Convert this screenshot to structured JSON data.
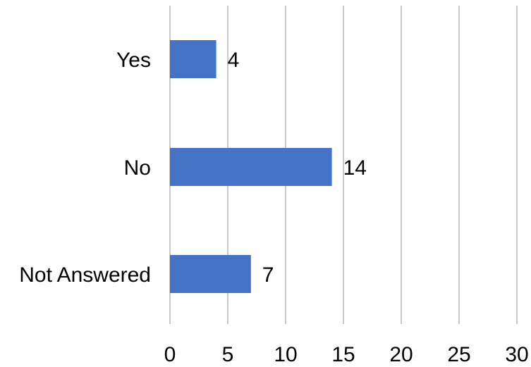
{
  "chart_data": {
    "type": "bar",
    "orientation": "horizontal",
    "title": "",
    "xlabel": "",
    "ylabel": "",
    "categories": [
      "Yes",
      "No",
      "Not Answered"
    ],
    "values": [
      4,
      14,
      7
    ],
    "xlim": [
      0,
      30
    ],
    "x_ticks": [
      0,
      5,
      10,
      15,
      20,
      25,
      30
    ],
    "x_tick_labels": [
      "0",
      "5",
      "10",
      "15",
      "20",
      "25",
      "30"
    ],
    "data_labels": [
      "4",
      "14",
      "7"
    ],
    "grid": "vertical",
    "legend": "none",
    "colors": {
      "bar": "#4472C4",
      "grid": "#C8C8C8",
      "text": "#000000"
    }
  }
}
